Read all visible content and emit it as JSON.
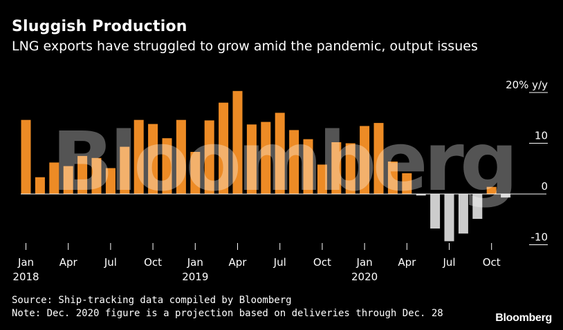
{
  "header": {
    "title": "Sluggish Production",
    "subtitle": "LNG exports have struggled to grow amid the pandemic, output issues"
  },
  "footer": {
    "source": "Source: Ship-tracking data compiled by Bloomberg",
    "note": "Note: Dec. 2020 figure is a projection based on deliveries through Dec. 28",
    "brand": "Bloomberg"
  },
  "watermark": "Bloomberg",
  "colors": {
    "positive": "#ed8b25",
    "negative": "#cccccc",
    "background": "#000000",
    "text": "#ffffff"
  },
  "chart_data": {
    "type": "bar",
    "ylabel": "y/y",
    "ylim": [
      -12,
      20
    ],
    "yticks": [
      {
        "value": 20,
        "label": "20%"
      },
      {
        "value": 10,
        "label": "10"
      },
      {
        "value": 0,
        "label": "0"
      },
      {
        "value": -10,
        "label": "-10"
      }
    ],
    "grid": false,
    "x": [
      "2018-01",
      "2018-02",
      "2018-03",
      "2018-04",
      "2018-05",
      "2018-06",
      "2018-07",
      "2018-08",
      "2018-09",
      "2018-10",
      "2018-11",
      "2018-12",
      "2019-01",
      "2019-02",
      "2019-03",
      "2019-04",
      "2019-05",
      "2019-06",
      "2019-07",
      "2019-08",
      "2019-09",
      "2019-10",
      "2019-11",
      "2019-12",
      "2020-01",
      "2020-02",
      "2020-03",
      "2020-04",
      "2020-05",
      "2020-06",
      "2020-07",
      "2020-08",
      "2020-09",
      "2020-10",
      "2020-11",
      "2020-12"
    ],
    "xtick_labels": [
      {
        "index": 0,
        "month": "Jan",
        "year": "2018"
      },
      {
        "index": 3,
        "month": "Apr",
        "year": ""
      },
      {
        "index": 6,
        "month": "Jul",
        "year": ""
      },
      {
        "index": 9,
        "month": "Oct",
        "year": ""
      },
      {
        "index": 12,
        "month": "Jan",
        "year": "2019"
      },
      {
        "index": 15,
        "month": "Apr",
        "year": ""
      },
      {
        "index": 18,
        "month": "Jul",
        "year": ""
      },
      {
        "index": 21,
        "month": "Oct",
        "year": ""
      },
      {
        "index": 24,
        "month": "Jan",
        "year": "2020"
      },
      {
        "index": 27,
        "month": "Apr",
        "year": ""
      },
      {
        "index": 30,
        "month": "Jul",
        "year": ""
      },
      {
        "index": 33,
        "month": "Oct",
        "year": ""
      }
    ],
    "values": [
      14.6,
      3.3,
      6.2,
      5.5,
      7.5,
      7.1,
      5.1,
      9.3,
      14.6,
      13.8,
      11.0,
      14.6,
      8.3,
      14.5,
      18.0,
      20.3,
      13.7,
      14.2,
      16.0,
      12.6,
      10.8,
      5.8,
      10.2,
      10.0,
      13.4,
      14.0,
      6.4,
      4.1,
      -0.3,
      -6.8,
      -9.3,
      -7.8,
      -4.9,
      1.4,
      -0.7,
      0
    ]
  }
}
